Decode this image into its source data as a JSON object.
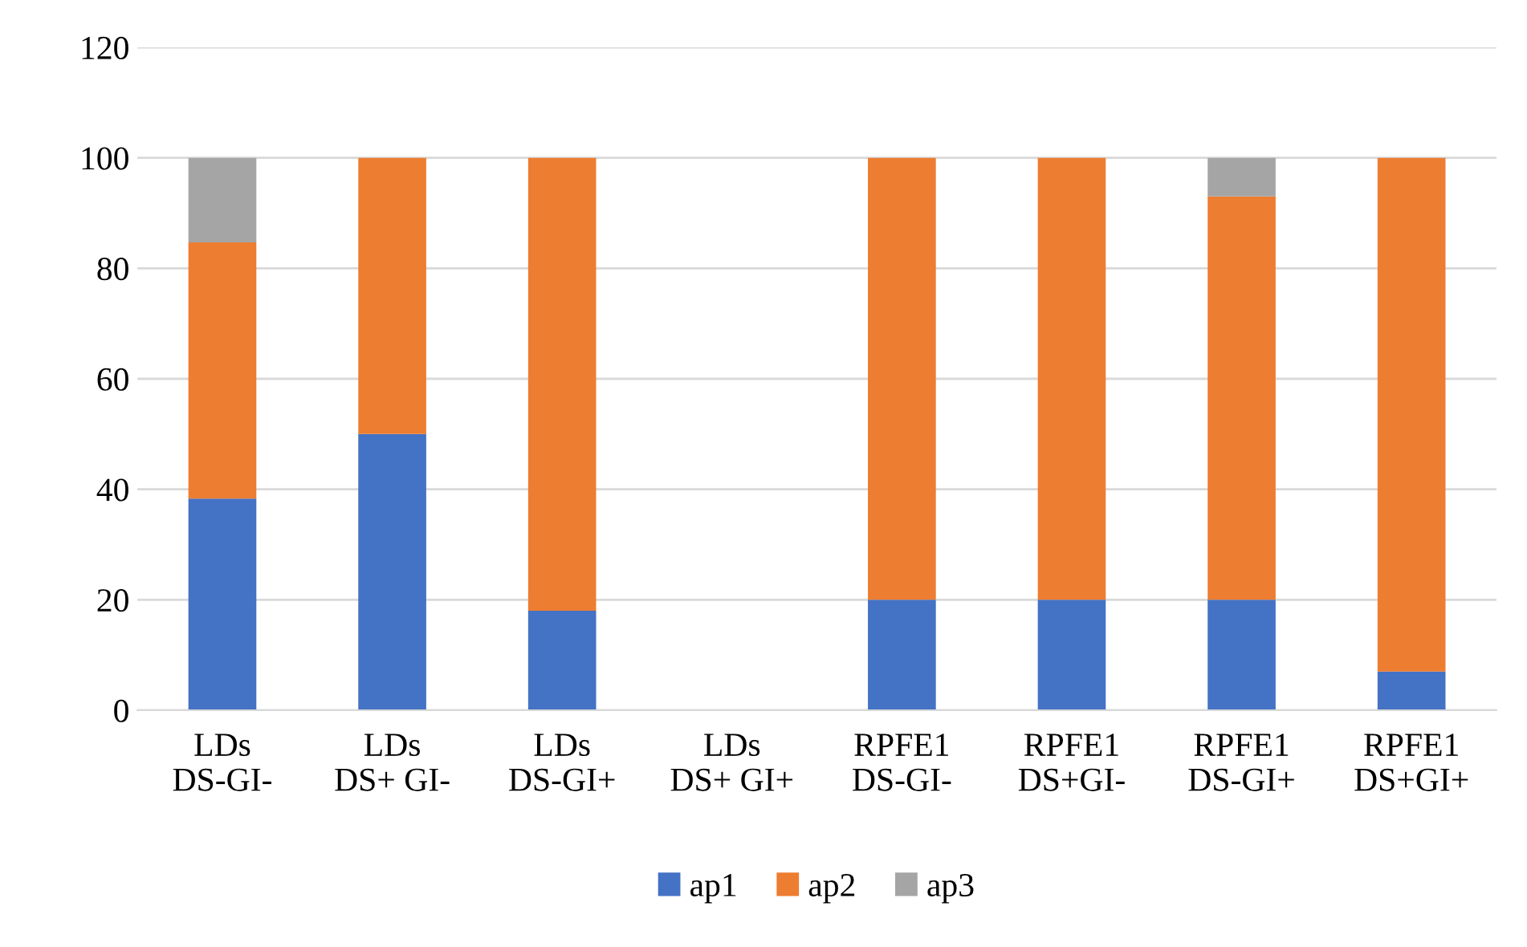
{
  "chart_data": {
    "type": "bar",
    "stacked": true,
    "categories": [
      "LDs\nDS-GI-",
      "LDs\nDS+ GI-",
      "LDs\nDS-GI+",
      "LDs\nDS+ GI+",
      "RPFE1\nDS-GI-",
      "RPFE1\nDS+GI-",
      "RPFE1\nDS-GI+",
      "RPFE1\nDS+GI+"
    ],
    "series": [
      {
        "name": "ap1",
        "color": "#4472c4",
        "values": [
          38.3,
          50,
          18,
          null,
          20,
          20,
          20,
          7
        ]
      },
      {
        "name": "ap2",
        "color": "#ed7d31",
        "values": [
          46.4,
          50,
          82,
          null,
          80,
          80,
          73,
          93
        ]
      },
      {
        "name": "ap3",
        "color": "#a5a5a5",
        "values": [
          15.3,
          0,
          0,
          null,
          0,
          0,
          7,
          0
        ]
      }
    ],
    "ylim": [
      0,
      120
    ],
    "yticks": [
      0,
      20,
      40,
      60,
      80,
      100,
      120
    ],
    "grid": "y",
    "legend": "bottom"
  }
}
